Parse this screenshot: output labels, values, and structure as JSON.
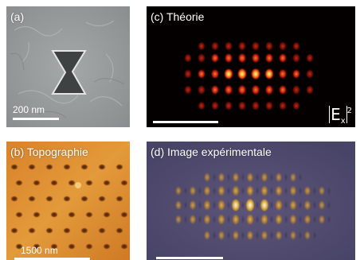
{
  "panel_a": {
    "label": "(a)",
    "scale_bar": "200 nm"
  },
  "panel_b": {
    "label": "(b) Topographie",
    "scale_bar": "1500 nm"
  },
  "panel_c": {
    "label": "(c) Théorie",
    "field_symbol": "E",
    "field_subscript": "x",
    "field_exponent": "2"
  },
  "panel_d": {
    "label": "(d) Image expérimentale"
  }
}
